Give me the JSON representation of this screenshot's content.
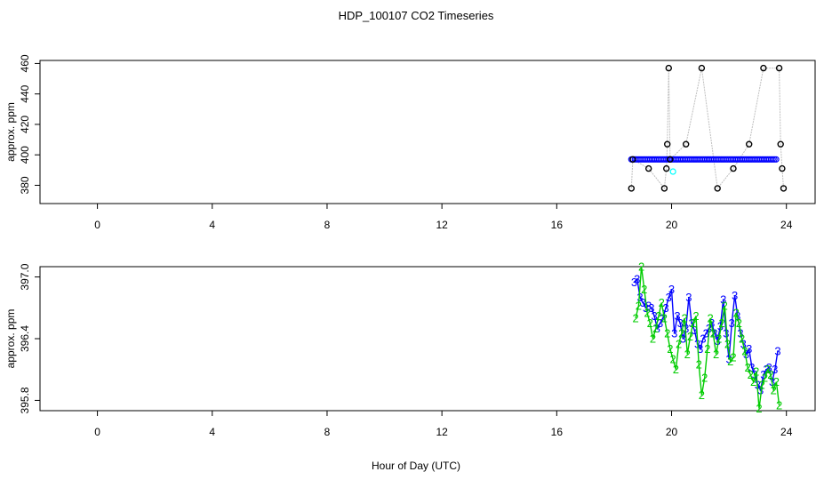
{
  "title": "HDP_100107  CO2 Timeseries",
  "xlabel": "Hour of Day (UTC)",
  "chart_data": [
    {
      "type": "scatter",
      "ylabel": "approx. ppm",
      "xlim": [
        -2.0,
        25.0
      ],
      "ylim": [
        368.0,
        462.0
      ],
      "xticks": [
        "0",
        "4",
        "8",
        "12",
        "16",
        "20",
        "24"
      ],
      "yticks": [
        "380",
        "400",
        "420",
        "440",
        "460"
      ],
      "colors": {
        "raw_marker": "#000000",
        "raw_line": "#bfbfbf",
        "filtered": "#0000ff",
        "flagged": "#00ffff"
      },
      "raw": {
        "x": [
          18.6,
          18.65,
          19.2,
          19.75,
          19.82,
          19.85,
          19.9,
          19.95,
          20.5,
          21.05,
          21.6,
          22.15,
          22.7,
          23.2,
          23.75,
          23.8,
          23.85,
          23.9
        ],
        "y": [
          378,
          397,
          391,
          378,
          391,
          407,
          457,
          397,
          407,
          457,
          378,
          391,
          407,
          457,
          457,
          407,
          391,
          378
        ]
      },
      "filtered": {
        "x_start": 18.6,
        "x_end": 23.65,
        "step": 0.06,
        "value": 397
      },
      "flagged": {
        "x": [
          20.05
        ],
        "y": [
          389
        ]
      }
    },
    {
      "type": "line",
      "ylabel": "approx. ppm",
      "xlim": [
        -2.0,
        25.0
      ],
      "ylim": [
        395.7,
        397.1
      ],
      "xticks": [
        "0",
        "4",
        "8",
        "12",
        "16",
        "20",
        "24"
      ],
      "yticks": [
        "395.8",
        "396.4",
        "397.0"
      ],
      "series": [
        {
          "marker": "3",
          "color": "#0000ff",
          "x": [
            18.7,
            18.8,
            18.9,
            19.0,
            19.1,
            19.2,
            19.3,
            19.4,
            19.5,
            19.6,
            19.7,
            19.8,
            19.9,
            20.0,
            20.1,
            20.2,
            20.3,
            20.4,
            20.5,
            20.6,
            20.7,
            20.8,
            20.9,
            21.0,
            21.1,
            21.2,
            21.3,
            21.4,
            21.5,
            21.6,
            21.7,
            21.8,
            21.9,
            22.0,
            22.1,
            22.2,
            22.3,
            22.4,
            22.5,
            22.6,
            22.7,
            22.8,
            22.9,
            23.0,
            23.1,
            23.2,
            23.3,
            23.4,
            23.5,
            23.6,
            23.7
          ],
          "y": [
            396.95,
            396.98,
            396.8,
            396.75,
            396.7,
            396.72,
            396.7,
            396.62,
            396.5,
            396.55,
            396.6,
            396.7,
            396.8,
            396.88,
            396.45,
            396.62,
            396.55,
            396.4,
            396.5,
            396.8,
            396.55,
            396.48,
            396.35,
            396.3,
            396.4,
            396.45,
            396.5,
            396.55,
            396.45,
            396.38,
            396.52,
            396.78,
            396.45,
            396.2,
            396.55,
            396.82,
            396.62,
            396.45,
            396.35,
            396.25,
            396.3,
            396.12,
            396.05,
            395.95,
            395.9,
            396.05,
            396.1,
            396.12,
            395.98,
            396.1,
            396.28
          ]
        },
        {
          "marker": "2",
          "color": "#00cc00",
          "x": [
            18.75,
            18.85,
            18.95,
            19.05,
            19.15,
            19.25,
            19.35,
            19.45,
            19.55,
            19.65,
            19.75,
            19.85,
            19.95,
            20.05,
            20.15,
            20.25,
            20.35,
            20.45,
            20.55,
            20.65,
            20.75,
            20.85,
            20.95,
            21.05,
            21.15,
            21.25,
            21.35,
            21.45,
            21.55,
            21.65,
            21.75,
            21.85,
            21.95,
            22.05,
            22.15,
            22.25,
            22.35,
            22.45,
            22.55,
            22.65,
            22.75,
            22.85,
            22.95,
            23.05,
            23.15,
            23.25,
            23.35,
            23.45,
            23.55,
            23.65,
            23.75
          ],
          "y": [
            396.6,
            396.72,
            397.1,
            396.88,
            396.65,
            396.55,
            396.4,
            396.5,
            396.62,
            396.75,
            396.6,
            396.45,
            396.3,
            396.2,
            396.1,
            396.35,
            396.45,
            396.6,
            396.25,
            396.42,
            396.55,
            396.62,
            396.15,
            395.85,
            396.02,
            396.3,
            396.6,
            396.45,
            396.25,
            396.4,
            396.55,
            396.72,
            396.35,
            396.18,
            396.22,
            396.65,
            396.55,
            396.4,
            396.28,
            396.12,
            396.05,
            395.98,
            396.08,
            395.72,
            395.95,
            396.02,
            396.1,
            396.05,
            395.9,
            395.98,
            395.75
          ]
        }
      ]
    }
  ]
}
